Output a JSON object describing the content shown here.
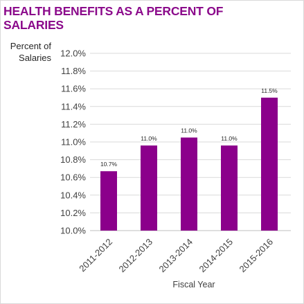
{
  "chart_data": {
    "type": "bar",
    "title_lines": [
      "HEALTH BENEFITS AS A PERCENT OF",
      "SALARIES"
    ],
    "ylabel_lines": [
      "Percent of",
      "Salaries"
    ],
    "xlabel": "Fiscal Year",
    "categories": [
      "2011-2012",
      "2012-2013",
      "2013-2014",
      "2014-2015",
      "2015-2016"
    ],
    "values": [
      10.67,
      10.96,
      11.05,
      10.96,
      11.5
    ],
    "data_labels": [
      "10.7%",
      "11.0%",
      "11.0%",
      "11.0%",
      "11.5%"
    ],
    "ylim": [
      10.0,
      12.0
    ],
    "yticks": [
      "10.0%",
      "10.2%",
      "10.4%",
      "10.6%",
      "10.8%",
      "11.0%",
      "11.2%",
      "11.4%",
      "11.6%",
      "11.8%",
      "12.0%"
    ],
    "grid": true,
    "legend": "none",
    "bar_color": "#8b008b",
    "title_color": "#8b0a8b"
  }
}
